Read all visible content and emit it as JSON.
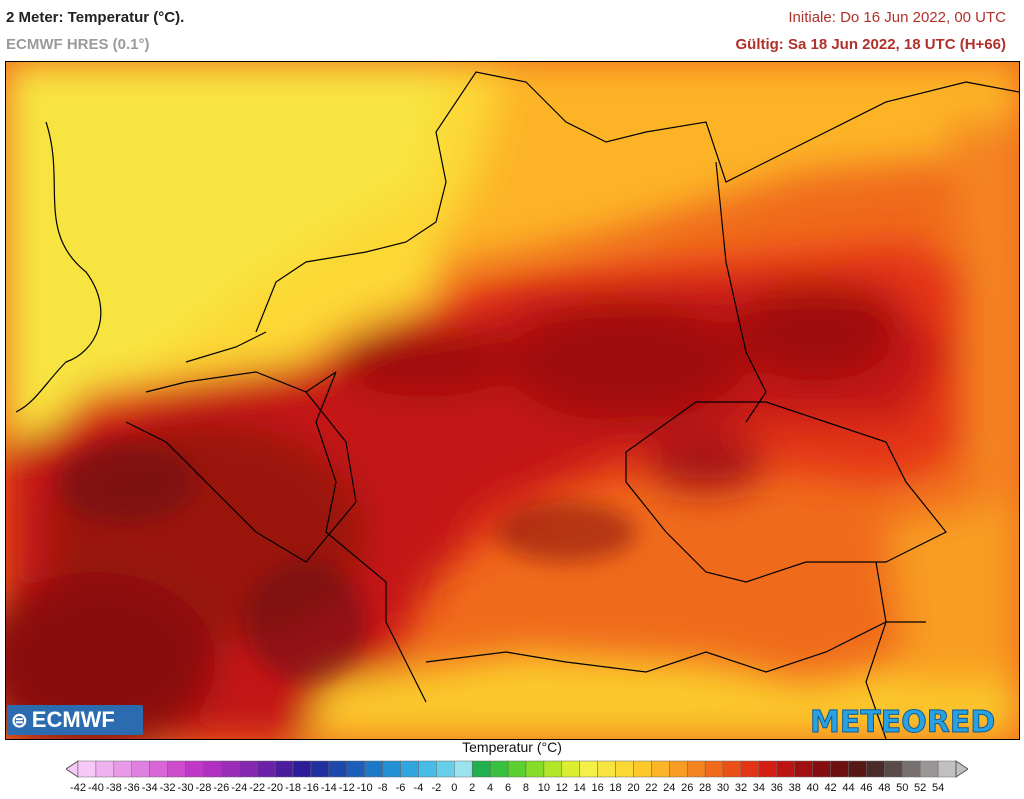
{
  "header": {
    "title": "2 Meter: Temperatur (°C).",
    "model": "ECMWF HRES (0.1°)",
    "init": "Initiale: Do 16 Jun 2022, 00 UTC",
    "valid": "Gültig: Sa 18 Jun 2022, 18 UTC (H+66)"
  },
  "logos": {
    "left": "ECMWF",
    "right": "METEORED"
  },
  "legend": {
    "title": "Temperatur (°C)",
    "labels": [
      "-42",
      "-40",
      "-38",
      "-36",
      "-34",
      "-32",
      "-30",
      "-28",
      "-26",
      "-24",
      "-22",
      "-20",
      "-18",
      "-16",
      "-14",
      "-12",
      "-10",
      "-8",
      "-6",
      "-4",
      "-2",
      "0",
      "2",
      "4",
      "6",
      "8",
      "10",
      "12",
      "14",
      "16",
      "18",
      "20",
      "22",
      "24",
      "26",
      "28",
      "30",
      "32",
      "34",
      "36",
      "38",
      "40",
      "42",
      "44",
      "46",
      "48",
      "50",
      "52",
      "54"
    ],
    "colors": [
      "#f6c8f6",
      "#f0b2f0",
      "#e89ae8",
      "#e080e0",
      "#d866d8",
      "#cc4ccc",
      "#c038c8",
      "#b030c0",
      "#9a2cb8",
      "#8428b0",
      "#6a22a8",
      "#4a1c9e",
      "#2c1c98",
      "#20309e",
      "#1e48ac",
      "#1c5eba",
      "#1e78c8",
      "#2490d4",
      "#30a6de",
      "#46bce6",
      "#66d0ec",
      "#9ae4f0",
      "#20b050",
      "#38c040",
      "#5cd030",
      "#86dc28",
      "#b2e628",
      "#dcee30",
      "#f4f048",
      "#f8e440",
      "#fcd834",
      "#fcc82c",
      "#fcb428",
      "#f89c24",
      "#f48420",
      "#f06a1c",
      "#ec5018",
      "#e43416",
      "#d41e14",
      "#bc1412",
      "#a01010",
      "#860e10",
      "#6c1012",
      "#581816",
      "#4c2a2a",
      "#5a4a4a",
      "#787070",
      "#9a9696",
      "#c0c0c0"
    ]
  }
}
